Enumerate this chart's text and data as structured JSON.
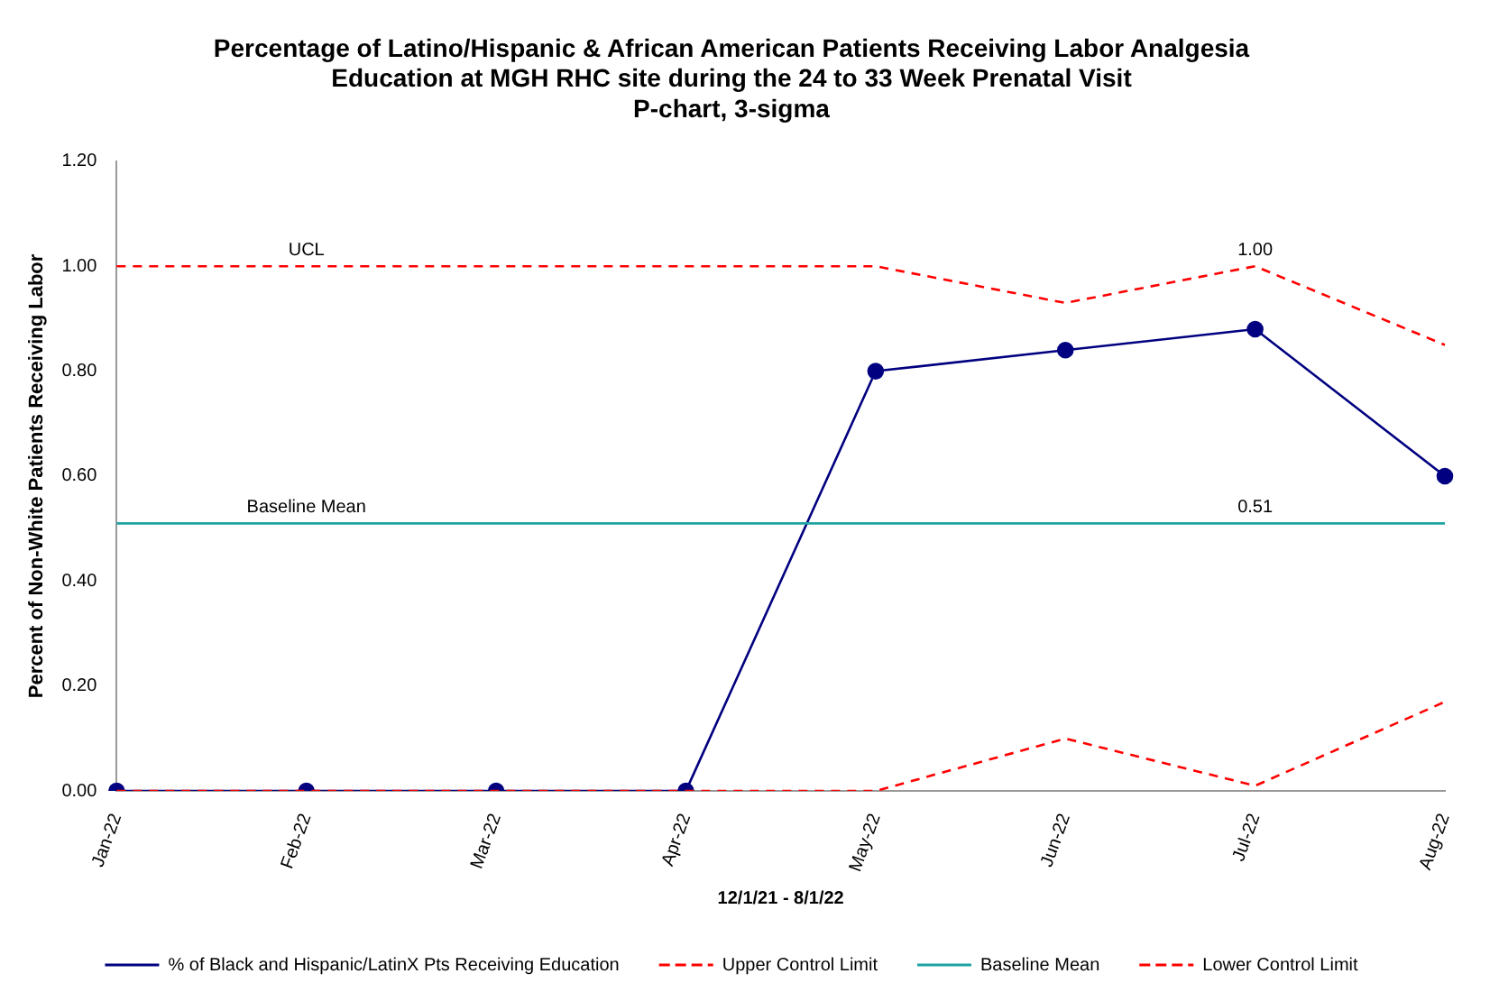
{
  "chart_data": {
    "type": "line",
    "title": [
      "Percentage of Latino/Hispanic & African American Patients Receiving Labor Analgesia",
      "Education at MGH RHC site during the 24 to 33 Week Prenatal Visit",
      "P-chart, 3-sigma"
    ],
    "xlabel": "12/1/21 - 8/1/22",
    "ylabel": "Percent of Non-White Patients Receiving Labor",
    "categories": [
      "Jan-22",
      "Feb-22",
      "Mar-22",
      "Apr-22",
      "May-22",
      "Jun-22",
      "Jul-22",
      "Aug-22"
    ],
    "series": [
      {
        "name": "% of Black and Hispanic/LatinX Pts Receiving Education",
        "color": "#000080",
        "marker": "circle",
        "line_style": "solid",
        "values": [
          0,
          0,
          0,
          0,
          0.8,
          0.84,
          0.88,
          0.6
        ]
      },
      {
        "name": "Upper Control Limit",
        "color": "#ff0000",
        "marker": "none",
        "line_style": "dashed",
        "values": [
          1.0,
          1.0,
          1.0,
          1.0,
          1.0,
          0.93,
          1.0,
          0.85
        ]
      },
      {
        "name": "Baseline Mean",
        "color": "#1fa3a3",
        "marker": "none",
        "line_style": "solid",
        "values": [
          0.51,
          0.51,
          0.51,
          0.51,
          0.51,
          0.51,
          0.51,
          0.51
        ]
      },
      {
        "name": "Lower Control Limit",
        "color": "#ff0000",
        "marker": "none",
        "line_style": "dashed",
        "values": [
          0,
          0,
          0,
          0,
          0,
          0.1,
          0.01,
          0.17
        ]
      }
    ],
    "ylim": [
      0,
      1.2
    ],
    "yticks": [
      {
        "value": 0,
        "label": "0.00"
      },
      {
        "value": 0.2,
        "label": "0.20"
      },
      {
        "value": 0.4,
        "label": "0.40"
      },
      {
        "value": 0.6,
        "label": "0.60"
      },
      {
        "value": 0.8,
        "label": "0.80"
      },
      {
        "value": 1.0,
        "label": "1.00"
      },
      {
        "value": 1.2,
        "label": "1.20"
      }
    ],
    "grid": false,
    "legend": "bottom",
    "annotations": [
      {
        "text": "UCL",
        "x": "Feb-22",
        "y": 1.0
      },
      {
        "text": "1.00",
        "x": "Jul-22",
        "y": 1.0
      },
      {
        "text": "Baseline Mean",
        "x": "Feb-22",
        "y": 0.51
      },
      {
        "text": "0.51",
        "x": "Jul-22",
        "y": 0.51
      }
    ]
  }
}
